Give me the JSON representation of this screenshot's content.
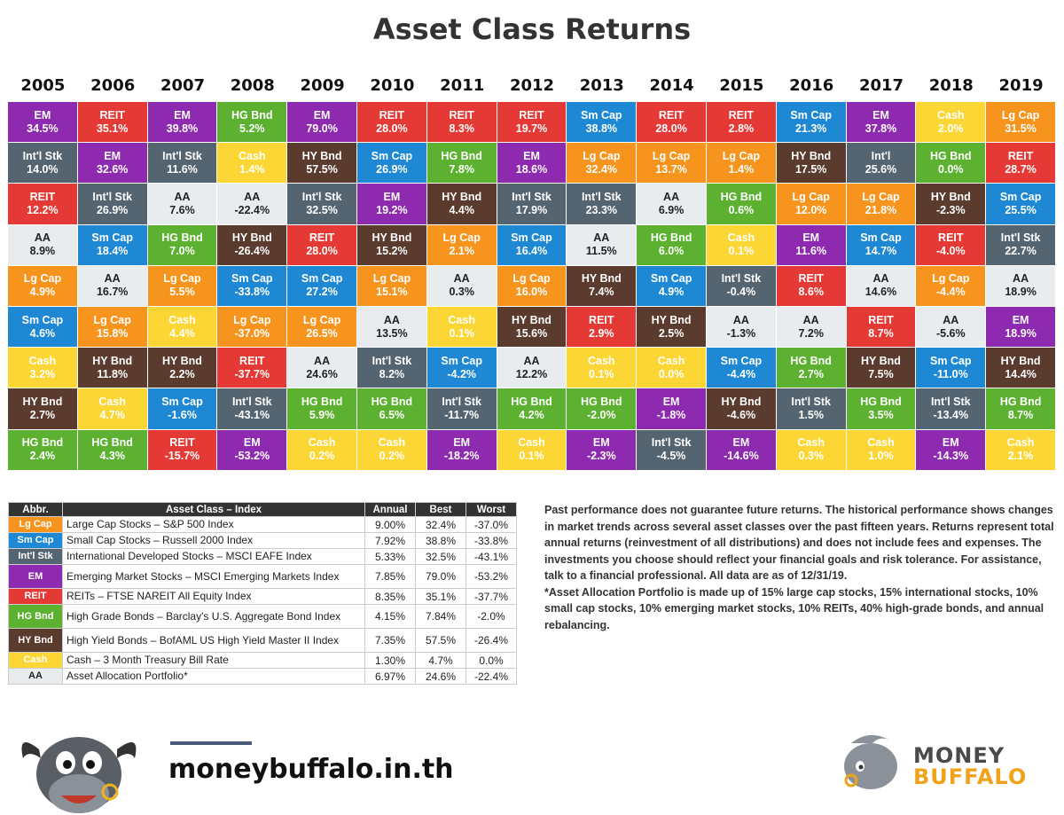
{
  "title": "Asset Class Returns",
  "colors": {
    "Lg Cap": "#f7941d",
    "Sm Cap": "#1e88d4",
    "Int'l Stk": "#546571",
    "EM": "#8e2ab0",
    "REIT": "#e53935",
    "HG Bnd": "#5cb230",
    "HY Bnd": "#5a3b2e",
    "Cash": "#fbd634",
    "AA": "#e8ecef"
  },
  "chart_data": {
    "type": "table",
    "years": [
      "2005",
      "2006",
      "2007",
      "2008",
      "2009",
      "2010",
      "2011",
      "2012",
      "2013",
      "2014",
      "2015",
      "2016",
      "2017",
      "2018",
      "2019"
    ],
    "columns": [
      [
        [
          "EM",
          "34.5%"
        ],
        [
          "Int'l Stk",
          "14.0%"
        ],
        [
          "REIT",
          "12.2%"
        ],
        [
          "AA",
          "8.9%"
        ],
        [
          "Lg Cap",
          "4.9%"
        ],
        [
          "Sm Cap",
          "4.6%"
        ],
        [
          "Cash",
          "3.2%"
        ],
        [
          "HY Bnd",
          "2.7%"
        ],
        [
          "HG Bnd",
          "2.4%"
        ]
      ],
      [
        [
          "REIT",
          "35.1%"
        ],
        [
          "EM",
          "32.6%"
        ],
        [
          "Int'l Stk",
          "26.9%"
        ],
        [
          "Sm Cap",
          "18.4%"
        ],
        [
          "AA",
          "16.7%"
        ],
        [
          "Lg Cap",
          "15.8%"
        ],
        [
          "HY Bnd",
          "11.8%"
        ],
        [
          "Cash",
          "4.7%"
        ],
        [
          "HG Bnd",
          "4.3%"
        ]
      ],
      [
        [
          "EM",
          "39.8%"
        ],
        [
          "Int'l Stk",
          "11.6%"
        ],
        [
          "AA",
          "7.6%"
        ],
        [
          "HG Bnd",
          "7.0%"
        ],
        [
          "Lg Cap",
          "5.5%"
        ],
        [
          "Cash",
          "4.4%"
        ],
        [
          "HY Bnd",
          "2.2%"
        ],
        [
          "Sm Cap",
          "-1.6%"
        ],
        [
          "REIT",
          "-15.7%"
        ]
      ],
      [
        [
          "HG Bnd",
          "5.2%"
        ],
        [
          "Cash",
          "1.4%"
        ],
        [
          "AA",
          "-22.4%"
        ],
        [
          "HY Bnd",
          "-26.4%"
        ],
        [
          "Sm Cap",
          "-33.8%"
        ],
        [
          "Lg Cap",
          "-37.0%"
        ],
        [
          "REIT",
          "-37.7%"
        ],
        [
          "Int'l Stk",
          "-43.1%"
        ],
        [
          "EM",
          "-53.2%"
        ]
      ],
      [
        [
          "EM",
          "79.0%"
        ],
        [
          "HY Bnd",
          "57.5%"
        ],
        [
          "Int'l Stk",
          "32.5%"
        ],
        [
          "REIT",
          "28.0%"
        ],
        [
          "Sm Cap",
          "27.2%"
        ],
        [
          "Lg Cap",
          "26.5%"
        ],
        [
          "AA",
          "24.6%"
        ],
        [
          "HG Bnd",
          "5.9%"
        ],
        [
          "Cash",
          "0.2%"
        ]
      ],
      [
        [
          "REIT",
          "28.0%"
        ],
        [
          "Sm Cap",
          "26.9%"
        ],
        [
          "EM",
          "19.2%"
        ],
        [
          "HY Bnd",
          "15.2%"
        ],
        [
          "Lg Cap",
          "15.1%"
        ],
        [
          "AA",
          "13.5%"
        ],
        [
          "Int'l Stk",
          "8.2%"
        ],
        [
          "HG Bnd",
          "6.5%"
        ],
        [
          "Cash",
          "0.2%"
        ]
      ],
      [
        [
          "REIT",
          "8.3%"
        ],
        [
          "HG Bnd",
          "7.8%"
        ],
        [
          "HY Bnd",
          "4.4%"
        ],
        [
          "Lg Cap",
          "2.1%"
        ],
        [
          "AA",
          "0.3%"
        ],
        [
          "Cash",
          "0.1%"
        ],
        [
          "Sm Cap",
          "-4.2%"
        ],
        [
          "Int'l Stk",
          "-11.7%"
        ],
        [
          "EM",
          "-18.2%"
        ]
      ],
      [
        [
          "REIT",
          "19.7%"
        ],
        [
          "EM",
          "18.6%"
        ],
        [
          "Int'l Stk",
          "17.9%"
        ],
        [
          "Sm Cap",
          "16.4%"
        ],
        [
          "Lg Cap",
          "16.0%"
        ],
        [
          "HY Bnd",
          "15.6%"
        ],
        [
          "AA",
          "12.2%"
        ],
        [
          "HG Bnd",
          "4.2%"
        ],
        [
          "Cash",
          "0.1%"
        ]
      ],
      [
        [
          "Sm Cap",
          "38.8%"
        ],
        [
          "Lg Cap",
          "32.4%"
        ],
        [
          "Int'l Stk",
          "23.3%"
        ],
        [
          "AA",
          "11.5%"
        ],
        [
          "HY Bnd",
          "7.4%"
        ],
        [
          "REIT",
          "2.9%"
        ],
        [
          "Cash",
          "0.1%"
        ],
        [
          "HG Bnd",
          "-2.0%"
        ],
        [
          "EM",
          "-2.3%"
        ]
      ],
      [
        [
          "REIT",
          "28.0%"
        ],
        [
          "Lg Cap",
          "13.7%"
        ],
        [
          "AA",
          "6.9%"
        ],
        [
          "HG Bnd",
          "6.0%"
        ],
        [
          "Sm Cap",
          "4.9%"
        ],
        [
          "HY Bnd",
          "2.5%"
        ],
        [
          "Cash",
          "0.0%"
        ],
        [
          "EM",
          "-1.8%"
        ],
        [
          "Int'l Stk",
          "-4.5%"
        ]
      ],
      [
        [
          "REIT",
          "2.8%"
        ],
        [
          "Lg Cap",
          "1.4%"
        ],
        [
          "HG Bnd",
          "0.6%"
        ],
        [
          "Cash",
          "0.1%"
        ],
        [
          "Int'l Stk",
          "-0.4%"
        ],
        [
          "AA",
          "-1.3%"
        ],
        [
          "Sm Cap",
          "-4.4%"
        ],
        [
          "HY Bnd",
          "-4.6%"
        ],
        [
          "EM",
          "-14.6%"
        ]
      ],
      [
        [
          "Sm Cap",
          "21.3%"
        ],
        [
          "HY Bnd",
          "17.5%"
        ],
        [
          "Lg Cap",
          "12.0%"
        ],
        [
          "EM",
          "11.6%"
        ],
        [
          "REIT",
          "8.6%"
        ],
        [
          "AA",
          "7.2%"
        ],
        [
          "HG Bnd",
          "2.7%"
        ],
        [
          "Int'l Stk",
          "1.5%"
        ],
        [
          "Cash",
          "0.3%"
        ]
      ],
      [
        [
          "EM",
          "37.8%"
        ],
        [
          "Int'l",
          "25.6%"
        ],
        [
          "Lg Cap",
          "21.8%"
        ],
        [
          "Sm Cap",
          "14.7%"
        ],
        [
          "AA",
          "14.6%"
        ],
        [
          "REIT",
          "8.7%"
        ],
        [
          "HY Bnd",
          "7.5%"
        ],
        [
          "HG Bnd",
          "3.5%"
        ],
        [
          "Cash",
          "1.0%"
        ]
      ],
      [
        [
          "Cash",
          "2.0%"
        ],
        [
          "HG Bnd",
          "0.0%"
        ],
        [
          "HY Bnd",
          "-2.3%"
        ],
        [
          "REIT",
          "-4.0%"
        ],
        [
          "Lg Cap",
          "-4.4%"
        ],
        [
          "AA",
          "-5.6%"
        ],
        [
          "Sm Cap",
          "-11.0%"
        ],
        [
          "Int'l Stk",
          "-13.4%"
        ],
        [
          "EM",
          "-14.3%"
        ]
      ],
      [
        [
          "Lg Cap",
          "31.5%"
        ],
        [
          "REIT",
          "28.7%"
        ],
        [
          "Sm Cap",
          "25.5%"
        ],
        [
          "Int'l Stk",
          "22.7%"
        ],
        [
          "AA",
          "18.9%"
        ],
        [
          "EM",
          "18.9%"
        ],
        [
          "HY Bnd",
          "14.4%"
        ],
        [
          "HG Bnd",
          "8.7%"
        ],
        [
          "Cash",
          "2.1%"
        ]
      ]
    ]
  },
  "legend": {
    "headers": [
      "Abbr.",
      "Asset Class – Index",
      "Annual",
      "Best",
      "Worst"
    ],
    "rows": [
      {
        "abbr": "Lg Cap",
        "name": "Large Cap Stocks – S&P 500 Index",
        "annual": "9.00%",
        "best": "32.4%",
        "worst": "-37.0%"
      },
      {
        "abbr": "Sm Cap",
        "name": "Small Cap Stocks – Russell 2000 Index",
        "annual": "7.92%",
        "best": "38.8%",
        "worst": "-33.8%"
      },
      {
        "abbr": "Int'l Stk",
        "name": "International Developed Stocks – MSCI EAFE Index",
        "annual": "5.33%",
        "best": "32.5%",
        "worst": "-43.1%"
      },
      {
        "abbr": "EM",
        "name": "Emerging Market Stocks – MSCI Emerging Markets Index",
        "annual": "7.85%",
        "best": "79.0%",
        "worst": "-53.2%"
      },
      {
        "abbr": "REIT",
        "name": "REITs – FTSE NAREIT All Equity Index",
        "annual": "8.35%",
        "best": "35.1%",
        "worst": "-37.7%"
      },
      {
        "abbr": "HG Bnd",
        "name": "High Grade Bonds – Barclay's U.S. Aggregate Bond Index",
        "annual": "4.15%",
        "best": "7.84%",
        "worst": "-2.0%"
      },
      {
        "abbr": "HY Bnd",
        "name": "High Yield Bonds – BofAML US High Yield Master II Index",
        "annual": "7.35%",
        "best": "57.5%",
        "worst": "-26.4%"
      },
      {
        "abbr": "Cash",
        "name": "Cash – 3 Month Treasury Bill Rate",
        "annual": "1.30%",
        "best": "4.7%",
        "worst": "0.0%"
      },
      {
        "abbr": "AA",
        "name": "Asset Allocation Portfolio*",
        "annual": "6.97%",
        "best": "24.6%",
        "worst": "-22.4%"
      }
    ]
  },
  "note": {
    "para1": "Past performance does not guarantee future returns. The historical performance shows changes in market trends across several asset classes over the past fifteen years. Returns represent total annual returns (reinvestment of all distributions) and does not include fees and expenses. The investments you choose should reflect your financial goals and risk tolerance. For assistance, talk to a financial professional. All data are as of 12/31/19.",
    "para2": "*Asset Allocation Portfolio is made up of 15% large cap stocks, 15% international stocks, 10% small cap stocks, 10% emerging market stocks, 10% REITs, 40% high-grade bonds, and annual rebalancing."
  },
  "footer": {
    "website": "moneybuffalo.in.th",
    "brand_line1": "MONEY",
    "brand_line2": "BUFFALO"
  }
}
